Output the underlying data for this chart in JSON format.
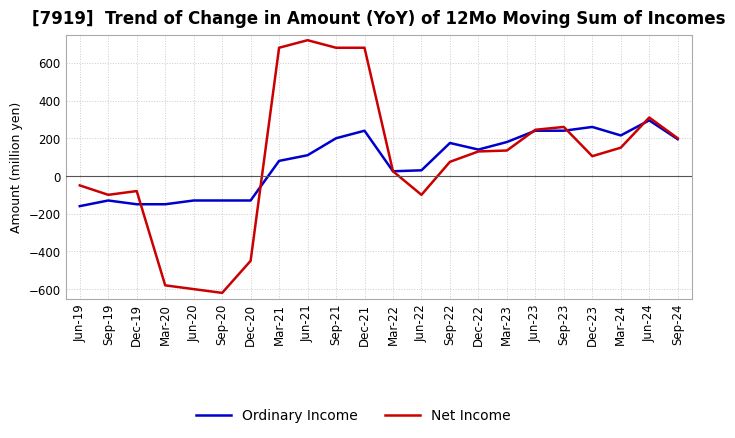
{
  "title": "[7919]  Trend of Change in Amount (YoY) of 12Mo Moving Sum of Incomes",
  "ylabel": "Amount (million yen)",
  "x_labels": [
    "Jun-19",
    "Sep-19",
    "Dec-19",
    "Mar-20",
    "Jun-20",
    "Sep-20",
    "Dec-20",
    "Mar-21",
    "Jun-21",
    "Sep-21",
    "Dec-21",
    "Mar-22",
    "Jun-22",
    "Sep-22",
    "Dec-22",
    "Mar-23",
    "Jun-23",
    "Sep-23",
    "Dec-23",
    "Mar-24",
    "Jun-24",
    "Sep-24"
  ],
  "ordinary_income": [
    -160,
    -130,
    -150,
    -150,
    -130,
    -130,
    -130,
    80,
    110,
    200,
    240,
    25,
    30,
    175,
    140,
    180,
    240,
    240,
    260,
    215,
    295,
    195
  ],
  "net_income": [
    -50,
    -100,
    -80,
    -580,
    -600,
    -620,
    -450,
    680,
    720,
    680,
    680,
    25,
    -100,
    75,
    130,
    135,
    245,
    260,
    105,
    150,
    310,
    200
  ],
  "ylim": [
    -650,
    750
  ],
  "yticks": [
    -600,
    -400,
    -200,
    0,
    200,
    400,
    600
  ],
  "ordinary_color": "#0000cc",
  "net_color": "#cc0000",
  "grid_color": "#cccccc",
  "grid_style": "dotted",
  "background_color": "#ffffff",
  "title_fontsize": 12,
  "axis_fontsize": 9,
  "tick_fontsize": 8.5,
  "legend_labels": [
    "Ordinary Income",
    "Net Income"
  ]
}
